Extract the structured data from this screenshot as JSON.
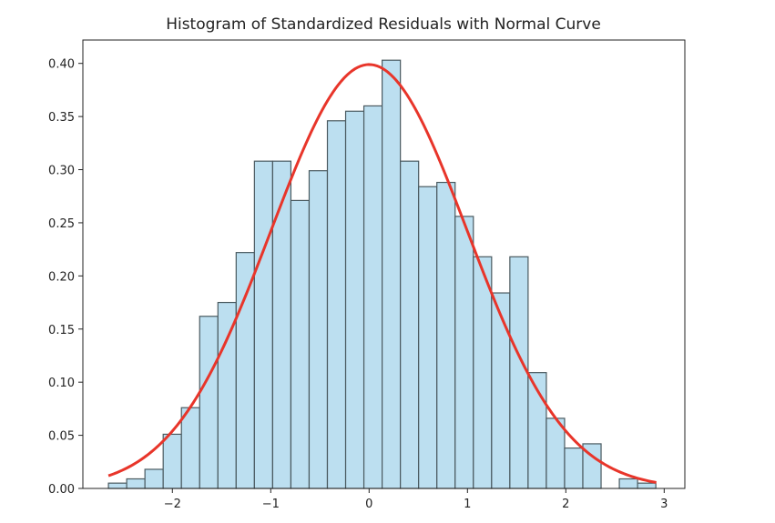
{
  "chart_data": {
    "type": "bar",
    "title": "Histogram of Standardized Residuals with Normal Curve",
    "xlabel": "",
    "ylabel": "",
    "xlim": [
      -2.91,
      3.21
    ],
    "ylim": [
      0,
      0.422
    ],
    "grid": false,
    "bin_start": -2.65,
    "bin_width": 0.1855,
    "values": [
      0.005,
      0.009,
      0.018,
      0.051,
      0.076,
      0.162,
      0.175,
      0.222,
      0.308,
      0.308,
      0.271,
      0.299,
      0.346,
      0.355,
      0.36,
      0.403,
      0.308,
      0.284,
      0.288,
      0.256,
      0.218,
      0.184,
      0.218,
      0.109,
      0.066,
      0.038,
      0.042,
      0.0,
      0.009,
      0.005
    ],
    "xticks": [
      -2,
      -1,
      0,
      1,
      2,
      3
    ],
    "xtick_labels": [
      "−2",
      "−1",
      "0",
      "1",
      "2",
      "3"
    ],
    "yticks": [
      0,
      0.05,
      0.1,
      0.15,
      0.2,
      0.25,
      0.3,
      0.35,
      0.4
    ],
    "ytick_labels": [
      "0.00",
      "0.05",
      "0.10",
      "0.15",
      "0.20",
      "0.25",
      "0.30",
      "0.35",
      "0.40"
    ],
    "curve": {
      "type": "normal-pdf",
      "mean": 0,
      "std": 1,
      "x_range": [
        -2.65,
        2.92
      ],
      "color": "#e8352a"
    },
    "bar_color": "#bcdff0",
    "bar_edge_color": "#4a5a60"
  }
}
